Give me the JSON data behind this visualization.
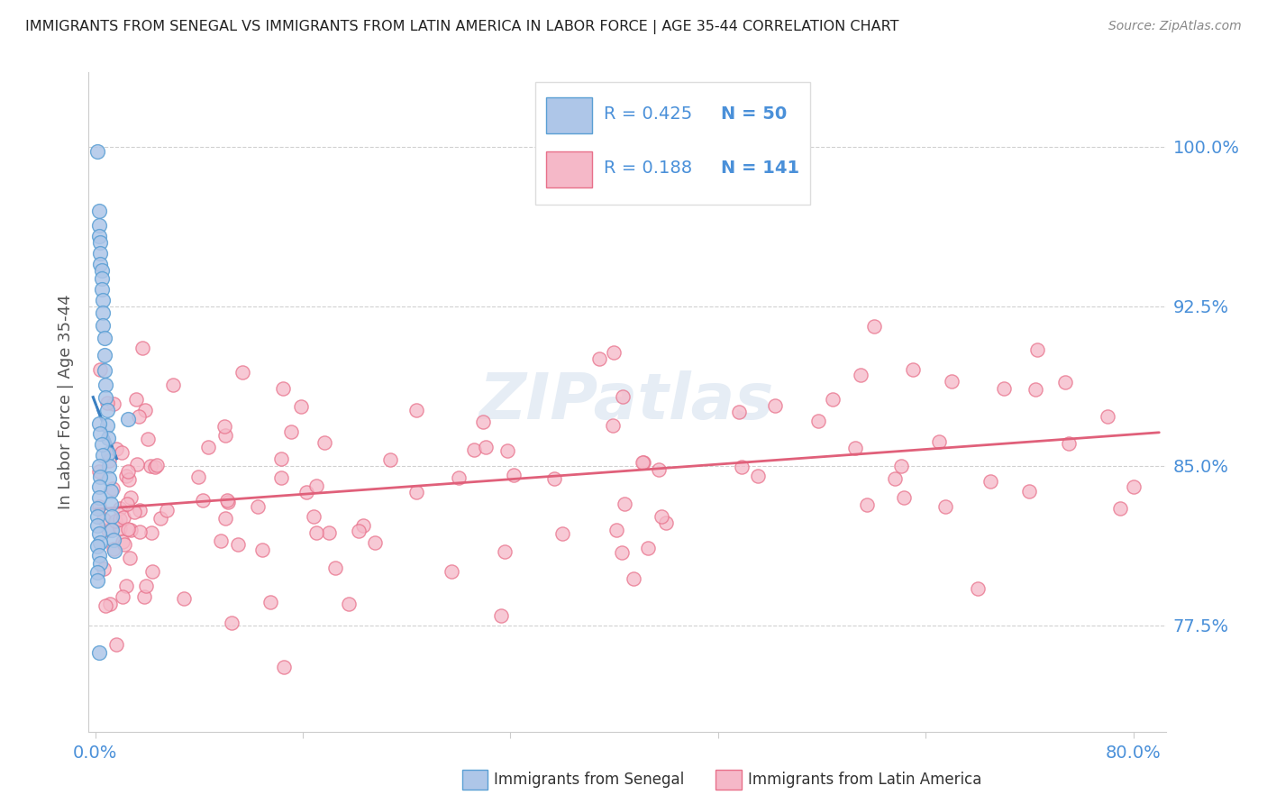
{
  "title": "IMMIGRANTS FROM SENEGAL VS IMMIGRANTS FROM LATIN AMERICA IN LABOR FORCE | AGE 35-44 CORRELATION CHART",
  "source": "Source: ZipAtlas.com",
  "ylabel": "In Labor Force | Age 35-44",
  "ytick_labels": [
    "77.5%",
    "85.0%",
    "92.5%",
    "100.0%"
  ],
  "ytick_values": [
    0.775,
    0.85,
    0.925,
    1.0
  ],
  "legend_blue_r": "R = 0.425",
  "legend_blue_n": "N = 50",
  "legend_pink_r": "R = 0.188",
  "legend_pink_n": "N = 141",
  "blue_fill": "#aec6e8",
  "blue_edge": "#5a9fd4",
  "pink_fill": "#f5b8c8",
  "pink_edge": "#e8708a",
  "blue_trend_color": "#3a7fc1",
  "pink_trend_color": "#e0607a",
  "text_blue": "#4a90d9",
  "watermark": "ZIPatlas",
  "title_color": "#222222",
  "grid_color": "#cccccc",
  "xlim_min": -0.005,
  "xlim_max": 0.825,
  "ylim_min": 0.725,
  "ylim_max": 1.035
}
